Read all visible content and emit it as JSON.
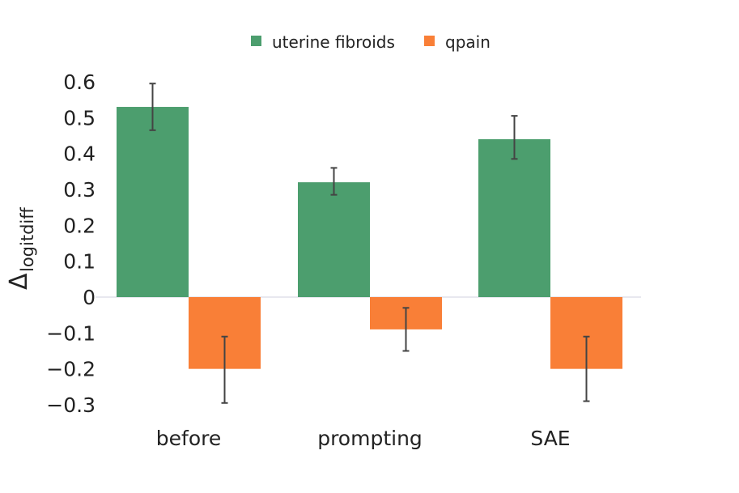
{
  "chart_data": {
    "type": "bar",
    "categories": [
      "before",
      "prompting",
      "SAE"
    ],
    "series": [
      {
        "name": "uterine fibroids",
        "color": "#4c9e6e",
        "values": [
          0.53,
          0.32,
          0.44
        ],
        "error_low": [
          0.465,
          0.285,
          0.385
        ],
        "error_high": [
          0.595,
          0.36,
          0.505
        ]
      },
      {
        "name": "qpain",
        "color": "#f97f37",
        "values": [
          -0.2,
          -0.09,
          -0.2
        ],
        "error_low": [
          -0.295,
          -0.15,
          -0.29
        ],
        "error_high": [
          -0.11,
          -0.03,
          -0.11
        ]
      }
    ],
    "ylabel_main": "Δ",
    "ylabel_sub": "logitdiff",
    "ylim": [
      -0.3,
      0.6
    ],
    "yticks": [
      0.6,
      0.5,
      0.4,
      0.3,
      0.2,
      0.1,
      0,
      -0.1,
      -0.2,
      -0.3
    ],
    "ytick_labels": [
      "0.6",
      "0.5",
      "0.4",
      "0.3",
      "0.2",
      "0.1",
      "0",
      "−0.1",
      "−0.2",
      "−0.3"
    ],
    "legend_position": "top-center",
    "grid": false,
    "zero_line": true
  }
}
